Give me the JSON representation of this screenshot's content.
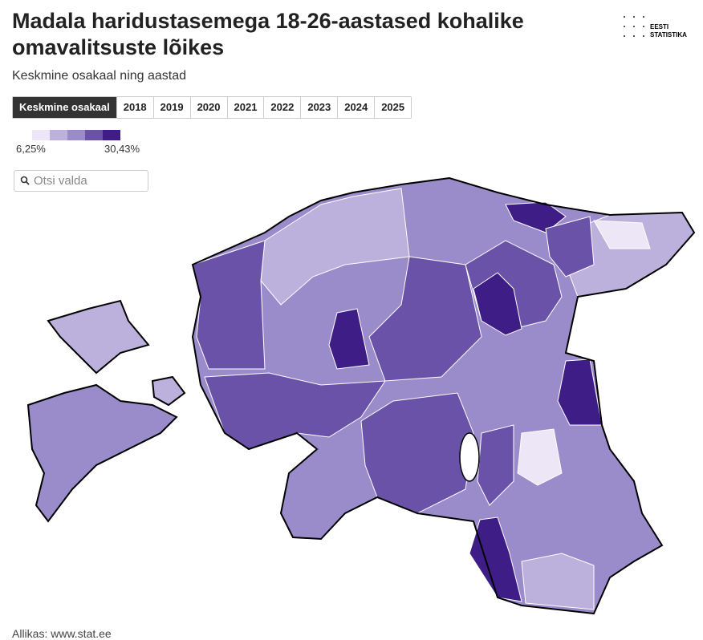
{
  "header": {
    "title": "Madala haridustasemega 18-26-aastased kohalike omavalitsuste lõikes",
    "subtitle": "Keskmine osakaal ning aastad",
    "logo": [
      "EESTI",
      "STATISTIKA"
    ]
  },
  "tabs": [
    "Keskmine osakaal",
    "2018",
    "2019",
    "2020",
    "2021",
    "2022",
    "2023",
    "2024",
    "2025"
  ],
  "legend": {
    "colors": [
      "#ece6f7",
      "#bcb0dc",
      "#9a8bcb",
      "#6a52a8",
      "#3f1d86"
    ],
    "min_label": "6,25%",
    "max_label": "30,43%"
  },
  "search": {
    "placeholder": "Otsi valda"
  },
  "source": "Allikas: www.stat.ee"
}
